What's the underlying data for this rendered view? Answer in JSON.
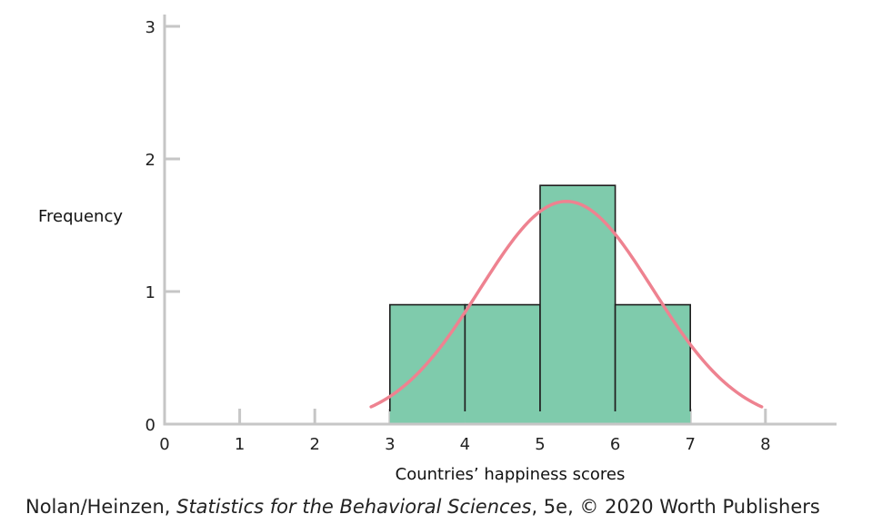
{
  "chart_data": {
    "type": "bar",
    "bins": [
      {
        "start": 3,
        "end": 4,
        "value": 1
      },
      {
        "start": 4,
        "end": 5,
        "value": 1
      },
      {
        "start": 5,
        "end": 6,
        "value": 2
      },
      {
        "start": 6,
        "end": 7,
        "value": 1
      }
    ],
    "curve": {
      "type": "normal",
      "mean": 5.35,
      "sd": 1.15,
      "peak": 1.68,
      "x_range": [
        2.75,
        7.95
      ]
    },
    "x_ticks": [
      "0",
      "1",
      "2",
      "3",
      "4",
      "5",
      "6",
      "7",
      "8"
    ],
    "y_ticks": [
      "0",
      "1",
      "2",
      "3"
    ],
    "xlim": [
      0,
      9
    ],
    "ylim": [
      0,
      3
    ],
    "xlabel": "Countries’ happiness scores",
    "ylabel": "Frequency",
    "colors": {
      "bar_fill": "#7fcbac",
      "bar_stroke": "#1e1e1e",
      "curve": "#ee8290",
      "axis": "#c6c6c6"
    }
  },
  "credit": {
    "authors": "Nolan/Heinzen, ",
    "title": "Statistics for the Behavioral Sciences",
    "rest": ", 5e, © 2020 Worth Publishers"
  }
}
